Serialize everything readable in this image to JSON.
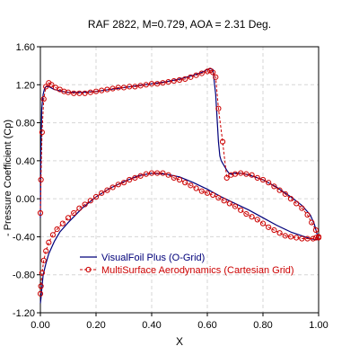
{
  "chart_data": {
    "type": "line",
    "title": "RAF 2822, M=0.729, AOA = 2.31 Deg.",
    "xlabel": "X",
    "ylabel": "- Pressure Coefficient (Cp)",
    "xlim": [
      0,
      1
    ],
    "ylim": [
      -1.2,
      1.6
    ],
    "xticks": [
      0,
      0.2,
      0.4,
      0.6,
      0.8,
      1.0
    ],
    "xtick_labels": [
      "0.00",
      "0.20",
      "0.40",
      "0.60",
      "0.80",
      "1.00"
    ],
    "yticks": [
      -1.2,
      -0.8,
      -0.4,
      0,
      0.4,
      0.8,
      1.2,
      1.6
    ],
    "ytick_labels": [
      "-1.20",
      "-0.80",
      "-0.40",
      "0.00",
      "0.40",
      "0.80",
      "1.20",
      "1.60"
    ],
    "grid": true,
    "legend_position": "lower-left",
    "series": [
      {
        "name": "VisualFoil Plus (O-Grid)",
        "color": "#00007a",
        "marker": "none",
        "dash": "solid",
        "x": [
          0.0,
          0.002,
          0.005,
          0.01,
          0.015,
          0.02,
          0.03,
          0.05,
          0.08,
          0.1,
          0.15,
          0.2,
          0.25,
          0.3,
          0.35,
          0.4,
          0.45,
          0.5,
          0.55,
          0.58,
          0.6,
          0.61,
          0.62,
          0.63,
          0.635,
          0.64,
          0.645,
          0.65,
          0.66,
          0.67,
          0.68,
          0.7,
          0.72,
          0.75,
          0.8,
          0.85,
          0.9,
          0.94,
          0.97,
          0.985,
          0.995,
          1.0,
          1.0,
          0.995,
          0.99,
          0.97,
          0.95,
          0.9,
          0.85,
          0.8,
          0.75,
          0.7,
          0.65,
          0.6,
          0.55,
          0.5,
          0.45,
          0.4,
          0.35,
          0.3,
          0.25,
          0.2,
          0.15,
          0.1,
          0.07,
          0.05,
          0.03,
          0.02,
          0.01,
          0.005,
          0.002,
          0.0
        ],
        "y": [
          -0.2,
          0.5,
          0.95,
          1.1,
          1.16,
          1.18,
          1.18,
          1.15,
          1.13,
          1.12,
          1.12,
          1.13,
          1.15,
          1.17,
          1.19,
          1.21,
          1.23,
          1.26,
          1.3,
          1.33,
          1.36,
          1.37,
          1.36,
          1.1,
          0.85,
          0.6,
          0.45,
          0.4,
          0.35,
          0.3,
          0.26,
          0.27,
          0.27,
          0.25,
          0.2,
          0.12,
          0.02,
          -0.07,
          -0.17,
          -0.27,
          -0.38,
          -0.43,
          -0.43,
          -0.43,
          -0.43,
          -0.42,
          -0.4,
          -0.35,
          -0.28,
          -0.2,
          -0.12,
          -0.05,
          0.02,
          0.1,
          0.17,
          0.23,
          0.26,
          0.27,
          0.24,
          0.18,
          0.11,
          0.02,
          -0.1,
          -0.25,
          -0.35,
          -0.45,
          -0.58,
          -0.68,
          -0.8,
          -0.95,
          -1.05,
          -1.1
        ]
      },
      {
        "name": "MultiSurface Aerodynamics (Cartesian Grid)",
        "color": "#cc0000",
        "marker": "circle",
        "dash": "dashed",
        "x": [
          0.0,
          0.002,
          0.006,
          0.012,
          0.02,
          0.03,
          0.04,
          0.055,
          0.07,
          0.085,
          0.1,
          0.12,
          0.14,
          0.16,
          0.18,
          0.2,
          0.22,
          0.24,
          0.26,
          0.28,
          0.3,
          0.32,
          0.34,
          0.36,
          0.38,
          0.4,
          0.42,
          0.44,
          0.46,
          0.48,
          0.5,
          0.52,
          0.54,
          0.56,
          0.58,
          0.6,
          0.61,
          0.62,
          0.63,
          0.64,
          0.655,
          0.67,
          0.685,
          0.7,
          0.72,
          0.74,
          0.76,
          0.78,
          0.8,
          0.82,
          0.84,
          0.86,
          0.88,
          0.9,
          0.92,
          0.94,
          0.96,
          0.975,
          0.99,
          1.0,
          1.0,
          0.99,
          0.98,
          0.96,
          0.94,
          0.92,
          0.9,
          0.88,
          0.86,
          0.84,
          0.82,
          0.8,
          0.78,
          0.76,
          0.74,
          0.72,
          0.7,
          0.68,
          0.66,
          0.64,
          0.62,
          0.6,
          0.58,
          0.56,
          0.54,
          0.52,
          0.5,
          0.48,
          0.46,
          0.44,
          0.42,
          0.4,
          0.38,
          0.36,
          0.34,
          0.32,
          0.3,
          0.28,
          0.26,
          0.24,
          0.22,
          0.2,
          0.18,
          0.16,
          0.14,
          0.12,
          0.1,
          0.08,
          0.06,
          0.045,
          0.03,
          0.02,
          0.012,
          0.006,
          0.002,
          0.0
        ],
        "y": [
          -0.15,
          0.2,
          0.7,
          1.05,
          1.18,
          1.22,
          1.2,
          1.17,
          1.15,
          1.13,
          1.12,
          1.11,
          1.11,
          1.11,
          1.12,
          1.13,
          1.14,
          1.15,
          1.16,
          1.17,
          1.17,
          1.18,
          1.18,
          1.19,
          1.2,
          1.21,
          1.21,
          1.22,
          1.23,
          1.24,
          1.25,
          1.26,
          1.28,
          1.3,
          1.32,
          1.34,
          1.35,
          1.33,
          1.28,
          0.95,
          0.6,
          0.22,
          0.25,
          0.26,
          0.27,
          0.26,
          0.25,
          0.22,
          0.2,
          0.17,
          0.13,
          0.09,
          0.05,
          0.0,
          -0.05,
          -0.1,
          -0.17,
          -0.25,
          -0.33,
          -0.4,
          -0.41,
          -0.41,
          -0.42,
          -0.42,
          -0.42,
          -0.41,
          -0.4,
          -0.39,
          -0.36,
          -0.33,
          -0.3,
          -0.26,
          -0.22,
          -0.19,
          -0.16,
          -0.12,
          -0.08,
          -0.05,
          -0.02,
          0.01,
          0.04,
          0.06,
          0.08,
          0.11,
          0.14,
          0.17,
          0.2,
          0.22,
          0.25,
          0.27,
          0.27,
          0.27,
          0.26,
          0.24,
          0.22,
          0.2,
          0.17,
          0.15,
          0.12,
          0.09,
          0.06,
          0.02,
          -0.02,
          -0.06,
          -0.1,
          -0.15,
          -0.2,
          -0.26,
          -0.32,
          -0.38,
          -0.46,
          -0.55,
          -0.65,
          -0.78,
          -0.92,
          -1.0
        ]
      }
    ]
  }
}
